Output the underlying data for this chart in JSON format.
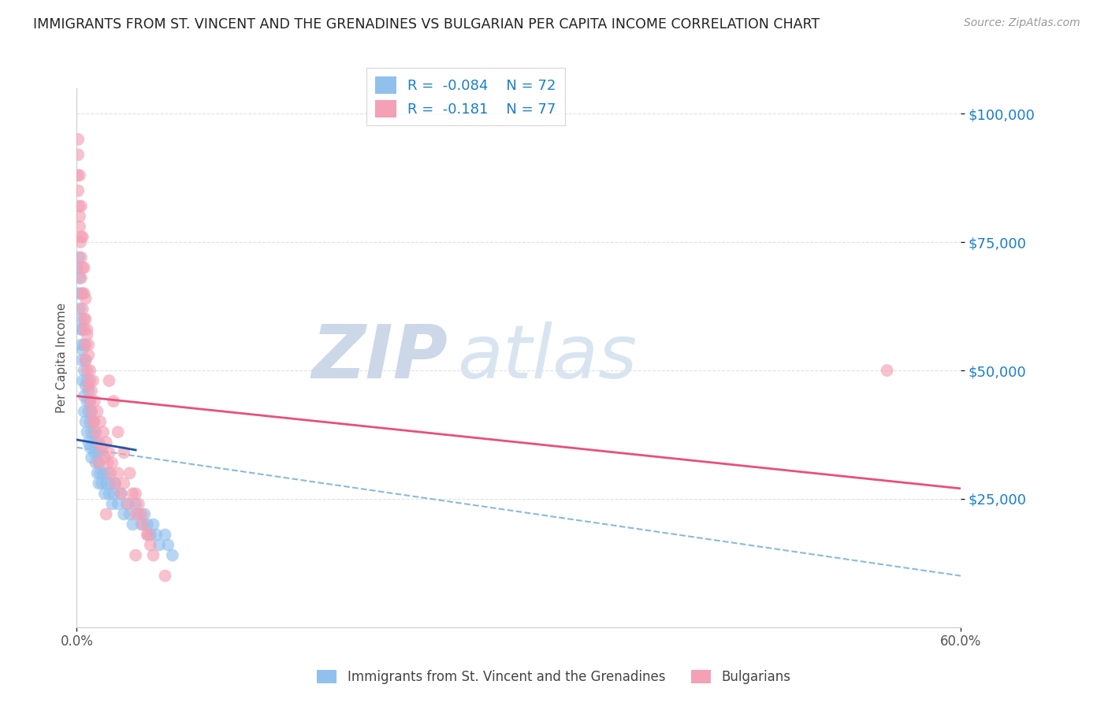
{
  "title": "IMMIGRANTS FROM ST. VINCENT AND THE GRENADINES VS BULGARIAN PER CAPITA INCOME CORRELATION CHART",
  "source": "Source: ZipAtlas.com",
  "ylabel": "Per Capita Income",
  "xlim": [
    0.0,
    0.6
  ],
  "ylim": [
    0,
    105000
  ],
  "yticks": [
    25000,
    50000,
    75000,
    100000
  ],
  "ytick_labels": [
    "$25,000",
    "$50,000",
    "$75,000",
    "$100,000"
  ],
  "xtick_labels": [
    "0.0%",
    "60.0%"
  ],
  "blue_color": "#91c0ed",
  "pink_color": "#f4a0b5",
  "blue_line_color": "#2255aa",
  "pink_line_color": "#e8507a",
  "dashed_line_color": "#88bbdd",
  "title_color": "#222222",
  "source_color": "#999999",
  "grid_color": "#e0e0e0",
  "watermark_zip": "ZIP",
  "watermark_atlas": "atlas",
  "watermark_color": "#ccd8e8",
  "pink_line_x0": 0.0,
  "pink_line_y0": 45000,
  "pink_line_x1": 0.6,
  "pink_line_y1": 27000,
  "blue_line_x0": 0.0,
  "blue_line_y0": 36500,
  "blue_line_x1": 0.04,
  "blue_line_y1": 34500,
  "dashed_line_x0": 0.0,
  "dashed_line_y0": 35000,
  "dashed_line_x1": 0.6,
  "dashed_line_y1": 10000,
  "blue_scatter_x": [
    0.0005,
    0.001,
    0.0015,
    0.002,
    0.002,
    0.0025,
    0.003,
    0.003,
    0.003,
    0.0035,
    0.004,
    0.004,
    0.004,
    0.005,
    0.005,
    0.005,
    0.005,
    0.006,
    0.006,
    0.006,
    0.007,
    0.007,
    0.007,
    0.008,
    0.008,
    0.008,
    0.009,
    0.009,
    0.009,
    0.01,
    0.01,
    0.01,
    0.011,
    0.011,
    0.012,
    0.012,
    0.013,
    0.013,
    0.014,
    0.014,
    0.015,
    0.015,
    0.016,
    0.016,
    0.017,
    0.018,
    0.019,
    0.02,
    0.021,
    0.022,
    0.023,
    0.024,
    0.025,
    0.026,
    0.028,
    0.03,
    0.032,
    0.034,
    0.036,
    0.038,
    0.04,
    0.042,
    0.044,
    0.046,
    0.048,
    0.05,
    0.052,
    0.054,
    0.056,
    0.06,
    0.062,
    0.065
  ],
  "blue_scatter_y": [
    70000,
    65000,
    72000,
    62000,
    68000,
    58000,
    55000,
    60000,
    65000,
    52000,
    48000,
    54000,
    58000,
    45000,
    50000,
    55000,
    42000,
    47000,
    52000,
    40000,
    44000,
    48000,
    38000,
    42000,
    46000,
    36000,
    40000,
    44000,
    35000,
    38000,
    42000,
    33000,
    36000,
    40000,
    34000,
    38000,
    32000,
    36000,
    30000,
    34000,
    28000,
    32000,
    30000,
    34000,
    28000,
    30000,
    26000,
    28000,
    30000,
    26000,
    28000,
    24000,
    26000,
    28000,
    24000,
    26000,
    22000,
    24000,
    22000,
    20000,
    24000,
    22000,
    20000,
    22000,
    20000,
    18000,
    20000,
    18000,
    16000,
    18000,
    16000,
    14000
  ],
  "pink_scatter_x": [
    0.0005,
    0.001,
    0.001,
    0.0015,
    0.002,
    0.002,
    0.0025,
    0.003,
    0.003,
    0.003,
    0.004,
    0.004,
    0.004,
    0.005,
    0.005,
    0.005,
    0.006,
    0.006,
    0.006,
    0.007,
    0.007,
    0.008,
    0.008,
    0.008,
    0.009,
    0.009,
    0.01,
    0.01,
    0.011,
    0.011,
    0.012,
    0.013,
    0.014,
    0.015,
    0.016,
    0.017,
    0.018,
    0.019,
    0.02,
    0.021,
    0.022,
    0.023,
    0.024,
    0.026,
    0.028,
    0.03,
    0.032,
    0.035,
    0.038,
    0.04,
    0.042,
    0.045,
    0.048,
    0.05,
    0.022,
    0.025,
    0.028,
    0.032,
    0.036,
    0.04,
    0.044,
    0.048,
    0.052,
    0.06,
    0.001,
    0.002,
    0.003,
    0.004,
    0.005,
    0.006,
    0.007,
    0.009,
    0.012,
    0.015,
    0.02,
    0.04,
    0.55
  ],
  "pink_scatter_y": [
    88000,
    85000,
    92000,
    82000,
    80000,
    78000,
    75000,
    72000,
    68000,
    76000,
    65000,
    70000,
    62000,
    60000,
    65000,
    58000,
    55000,
    60000,
    52000,
    57000,
    50000,
    53000,
    47000,
    55000,
    44000,
    50000,
    46000,
    42000,
    48000,
    40000,
    44000,
    38000,
    42000,
    36000,
    40000,
    35000,
    38000,
    33000,
    36000,
    32000,
    34000,
    30000,
    32000,
    28000,
    30000,
    26000,
    28000,
    24000,
    26000,
    22000,
    24000,
    20000,
    18000,
    16000,
    48000,
    44000,
    38000,
    34000,
    30000,
    26000,
    22000,
    18000,
    14000,
    10000,
    95000,
    88000,
    82000,
    76000,
    70000,
    64000,
    58000,
    48000,
    40000,
    32000,
    22000,
    14000,
    50000
  ]
}
